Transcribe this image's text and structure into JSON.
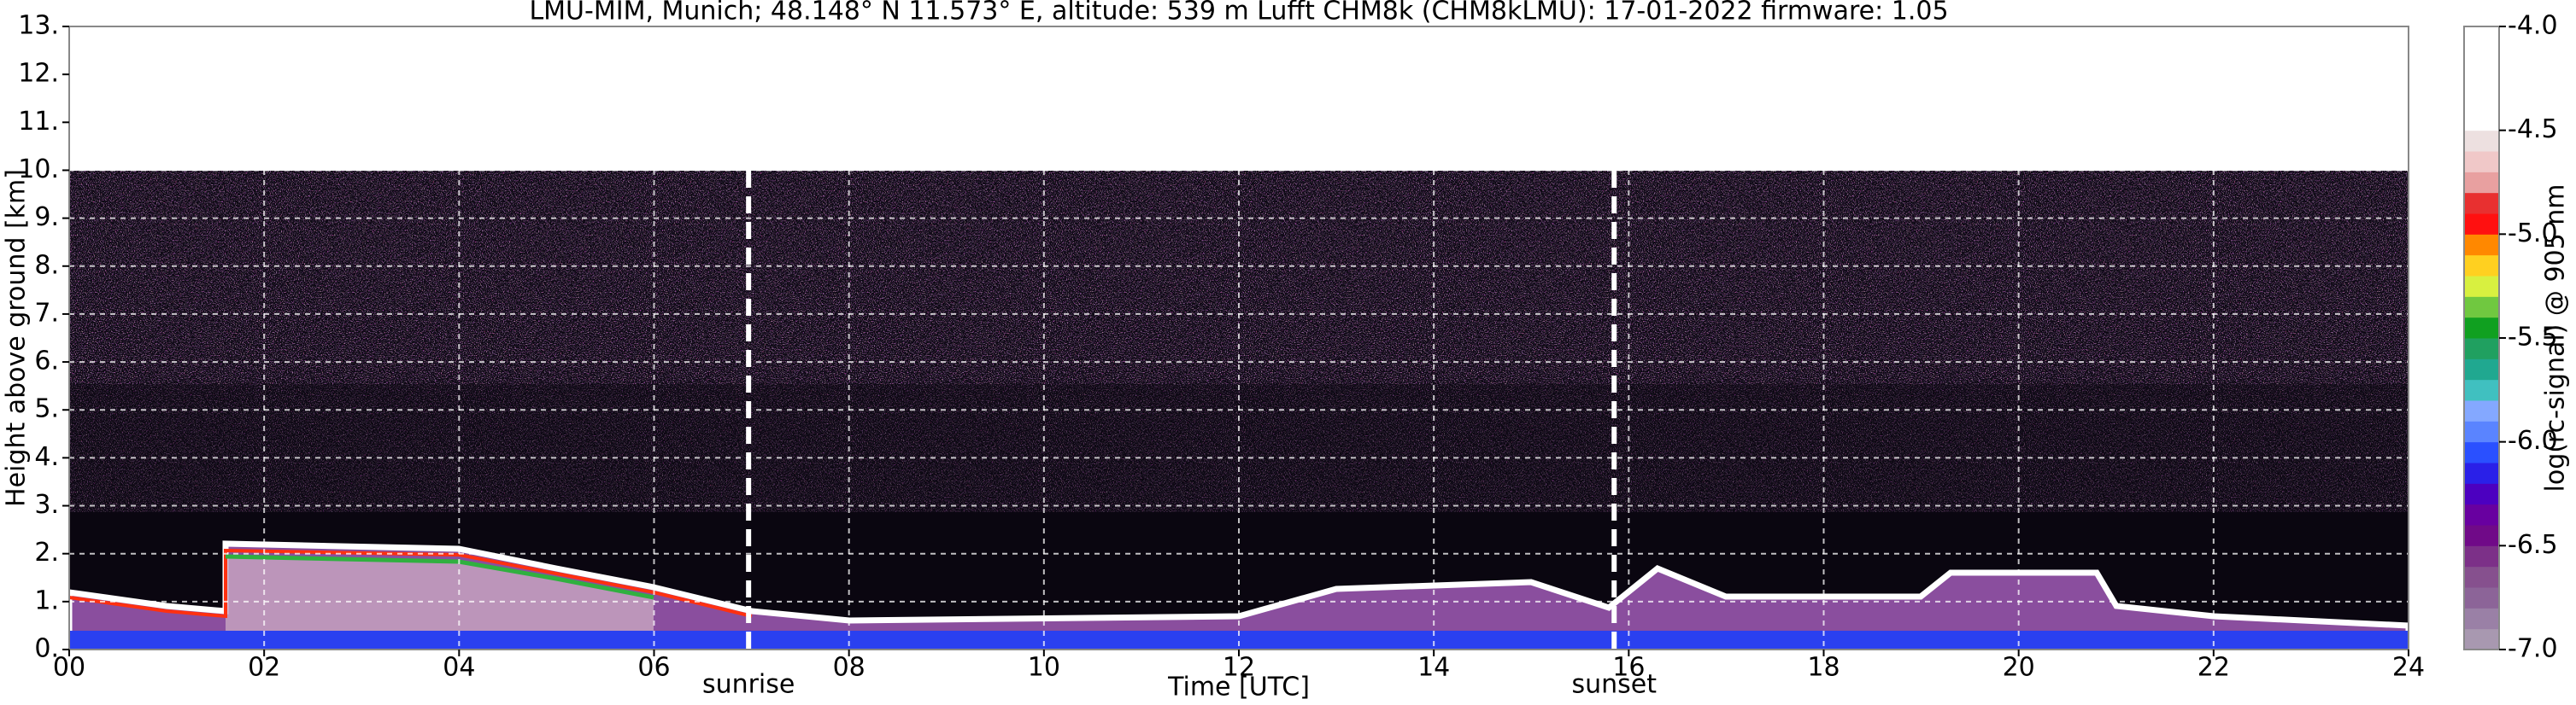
{
  "chart_data": {
    "type": "heatmap",
    "title": "LMU-MIM, Munich; 48.148° N 11.573° E, altitude: 539 m    Lufft CHM8k (CHM8kLMU): 17-01-2022    firmware: 1.05",
    "xlabel": "Time [UTC]",
    "ylabel": "Height above ground [km]",
    "xlim": [
      0,
      24
    ],
    "ylim": [
      0,
      13
    ],
    "xticks": [
      {
        "value": 0,
        "label": "00"
      },
      {
        "value": 2,
        "label": "02"
      },
      {
        "value": 4,
        "label": "04"
      },
      {
        "value": 6,
        "label": "06"
      },
      {
        "value": 8,
        "label": "08"
      },
      10,
      12,
      14,
      16,
      18,
      20,
      22,
      24
    ],
    "yticks": [
      {
        "value": 0,
        "label": "0."
      },
      {
        "value": 1,
        "label": "1."
      },
      {
        "value": 2,
        "label": "2."
      },
      {
        "value": 3,
        "label": "3."
      },
      {
        "value": 4,
        "label": "4."
      },
      {
        "value": 5,
        "label": "5."
      },
      {
        "value": 6,
        "label": "6."
      },
      {
        "value": 7,
        "label": "7."
      },
      {
        "value": 8,
        "label": "8."
      },
      {
        "value": 9,
        "label": "9."
      },
      {
        "value": 10,
        "label": "10."
      },
      {
        "value": 11,
        "label": "11."
      },
      {
        "value": 12,
        "label": "12."
      },
      {
        "value": 13,
        "label": "13."
      }
    ],
    "grid": true,
    "annotations": [
      {
        "x": 6.97,
        "label": "sunrise"
      },
      {
        "x": 15.85,
        "label": "sunset"
      }
    ],
    "colorbar": {
      "label": "log(rc-signal) @ 905 nm",
      "lim": [
        -7,
        -4
      ],
      "ticks": [
        {
          "value": -4,
          "label": "-4.0"
        },
        -4.5,
        {
          "value": -5,
          "label": "-5.0"
        },
        -5.5,
        {
          "value": -6,
          "label": "-6.0"
        },
        -6.5,
        {
          "value": -7,
          "label": "-7.0"
        }
      ],
      "colors": [
        "#a898b0",
        "#9a80a6",
        "#8c6498",
        "#86508e",
        "#7c3088",
        "#700a88",
        "#6800a0",
        "#4c00c0",
        "#2a20e8",
        "#2a50ff",
        "#5a84ff",
        "#84a8ff",
        "#40c0c0",
        "#20a890",
        "#20a060",
        "#10a020",
        "#70c840",
        "#d8f040",
        "#ffd020",
        "#ff8800",
        "#ff1010",
        "#e83030",
        "#e8a0a0",
        "#f0c8c8",
        "#ede0e0",
        "#ffffff",
        "#ffffff",
        "#ffffff",
        "#ffffff",
        "#ffffff"
      ]
    }
  }
}
